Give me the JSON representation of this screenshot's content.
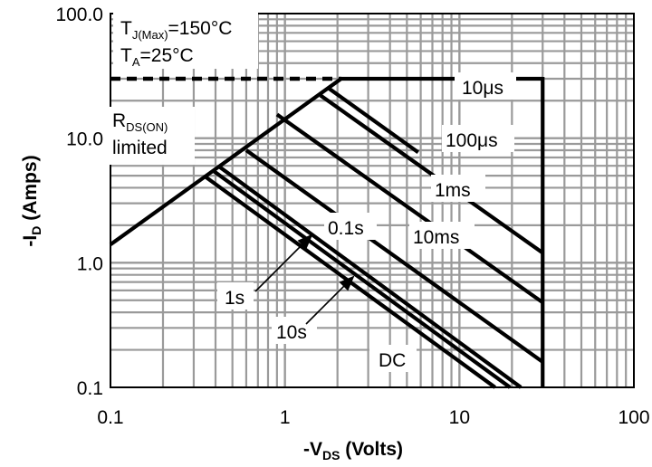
{
  "chart_data": {
    "type": "line",
    "x_scale": "log",
    "y_scale": "log",
    "xlim": [
      0.1,
      100
    ],
    "ylim": [
      0.1,
      100
    ],
    "grid": true,
    "xlabel": {
      "main": "-V",
      "sub": "DS",
      "tail": " (Volts)"
    },
    "ylabel": {
      "main": "-I",
      "sub": "D",
      "tail": " (Amps)"
    },
    "x_ticks": [
      {
        "value": 0.1,
        "label": "0.1"
      },
      {
        "value": 1,
        "label": "1"
      },
      {
        "value": 10,
        "label": "10"
      },
      {
        "value": 100,
        "label": "100"
      }
    ],
    "y_ticks": [
      {
        "value": 0.1,
        "label": "0.1"
      },
      {
        "value": 1,
        "label": "1.0"
      },
      {
        "value": 10,
        "label": "10.0"
      },
      {
        "value": 100,
        "label": "100.0"
      }
    ],
    "conditions": {
      "tj": {
        "main": "T",
        "sub": "J(Max)",
        "tail": "=150°C"
      },
      "ta": {
        "main": "T",
        "sub": "A",
        "tail": "=25°C"
      }
    },
    "rds_label": {
      "main": "R",
      "sub": "DS(ON)",
      "line2": "limited"
    },
    "current_limit": {
      "value": 30,
      "style": "dashed"
    },
    "voltage_limit": 30,
    "rds_limit": {
      "points": [
        [
          0.1,
          1.4
        ],
        [
          2.1,
          30
        ]
      ]
    },
    "series": [
      {
        "name": "10μs",
        "x": [
          0.1,
          2.1,
          30
        ],
        "y": [
          1.4,
          30,
          30
        ]
      },
      {
        "name": "100μs",
        "points": [
          [
            1.75,
            25.6
          ],
          [
            5.8,
            7.7
          ]
        ]
      },
      {
        "name": "1ms",
        "points": [
          [
            1.6,
            22
          ],
          [
            30,
            1.2
          ]
        ]
      },
      {
        "name": "10ms",
        "points": [
          [
            0.9,
            15.5
          ],
          [
            30,
            0.48
          ]
        ]
      },
      {
        "name": "0.1s",
        "points": [
          [
            0.6,
            8
          ],
          [
            30,
            0.16
          ]
        ]
      },
      {
        "name": "1s",
        "points": [
          [
            0.42,
            5.9
          ],
          [
            22.5,
            0.1
          ]
        ]
      },
      {
        "name": "10s",
        "points": [
          [
            0.39,
            5.45
          ],
          [
            19.5,
            0.1
          ]
        ]
      },
      {
        "name": "DC",
        "points": [
          [
            0.35,
            4.9
          ],
          [
            16,
            0.1
          ]
        ]
      }
    ],
    "labels": {
      "s10us": "10μs",
      "s100us": "100μs",
      "s1ms": "1ms",
      "s10ms": "10ms",
      "s01s": "0.1s",
      "s1s": "1s",
      "s10s": "10s",
      "sdc": "DC"
    }
  }
}
